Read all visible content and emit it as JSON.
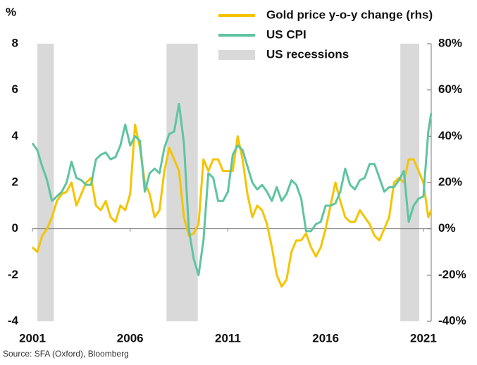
{
  "chart_data": {
    "type": "line",
    "y_label": "%",
    "source": "Source: SFA (Oxford), Bloomberg",
    "xlim": [
      2001,
      2021.4
    ],
    "xticks": [
      2001,
      2006,
      2011,
      2016,
      2021
    ],
    "ylim": [
      -4,
      8
    ],
    "yticks": [
      -4,
      -2,
      0,
      2,
      4,
      6,
      8
    ],
    "y2lim": [
      -40,
      80
    ],
    "y2ticks": [
      {
        "value": -40,
        "label": "-40%"
      },
      {
        "value": -20,
        "label": "-20%"
      },
      {
        "value": 0,
        "label": "0%"
      },
      {
        "value": 20,
        "label": "20%"
      },
      {
        "value": 40,
        "label": "40%"
      },
      {
        "value": 60,
        "label": "60%"
      },
      {
        "value": 80,
        "label": "80%"
      }
    ],
    "x": [
      2001,
      2001.25,
      2001.5,
      2001.75,
      2002,
      2002.25,
      2002.5,
      2002.75,
      2003,
      2003.25,
      2003.5,
      2003.75,
      2004,
      2004.25,
      2004.5,
      2004.75,
      2005,
      2005.25,
      2005.5,
      2005.75,
      2006,
      2006.25,
      2006.5,
      2006.75,
      2007,
      2007.25,
      2007.5,
      2007.75,
      2008,
      2008.25,
      2008.5,
      2008.75,
      2009,
      2009.25,
      2009.5,
      2009.75,
      2010,
      2010.25,
      2010.5,
      2010.75,
      2011,
      2011.25,
      2011.5,
      2011.75,
      2012,
      2012.25,
      2012.5,
      2012.75,
      2013,
      2013.25,
      2013.5,
      2013.75,
      2014,
      2014.25,
      2014.5,
      2014.75,
      2015,
      2015.25,
      2015.5,
      2015.75,
      2016,
      2016.25,
      2016.5,
      2016.75,
      2017,
      2017.25,
      2017.5,
      2017.75,
      2018,
      2018.25,
      2018.5,
      2018.75,
      2019,
      2019.25,
      2019.5,
      2019.75,
      2020,
      2020.25,
      2020.5,
      2020.75,
      2021,
      2021.25,
      2021.4
    ],
    "series": [
      {
        "name": "Gold price y-o-y change (rhs)",
        "color": "#f5c400",
        "axis": "y2",
        "values": [
          -8,
          -10,
          -3,
          0,
          5,
          12,
          15,
          16,
          20,
          10,
          15,
          20,
          22,
          10,
          8,
          12,
          5,
          3,
          10,
          8,
          15,
          45,
          35,
          20,
          15,
          5,
          8,
          25,
          35,
          30,
          25,
          5,
          -3,
          -2,
          2,
          30,
          25,
          30,
          30,
          25,
          25,
          25,
          40,
          30,
          15,
          5,
          10,
          8,
          2,
          -8,
          -20,
          -25,
          -22,
          -10,
          -5,
          -5,
          -2,
          -8,
          -12,
          -8,
          0,
          10,
          20,
          12,
          5,
          3,
          3,
          8,
          5,
          2,
          -3,
          -5,
          0,
          5,
          20,
          22,
          20,
          30,
          30,
          25,
          20,
          5,
          8
        ]
      },
      {
        "name": "US CPI",
        "color": "#5fc4a0",
        "values": [
          3.7,
          3.4,
          2.7,
          2.1,
          1.2,
          1.4,
          1.6,
          2.0,
          2.9,
          2.2,
          2.1,
          1.9,
          1.9,
          3.0,
          3.2,
          3.3,
          3.0,
          3.1,
          3.6,
          4.5,
          3.6,
          4.0,
          3.8,
          1.6,
          2.4,
          2.6,
          2.4,
          3.5,
          4.1,
          4.2,
          5.4,
          3.7,
          0.0,
          -1.3,
          -2.0,
          -0.5,
          2.4,
          2.2,
          1.2,
          1.2,
          1.6,
          3.2,
          3.6,
          3.4,
          2.7,
          2.0,
          1.7,
          1.9,
          1.6,
          1.2,
          1.8,
          1.2,
          1.5,
          2.1,
          1.9,
          1.3,
          -0.1,
          -0.1,
          0.2,
          0.3,
          1.0,
          1.0,
          1.1,
          1.6,
          2.6,
          1.9,
          1.7,
          2.1,
          2.2,
          2.8,
          2.8,
          2.2,
          1.6,
          1.8,
          1.8,
          2.1,
          2.5,
          0.3,
          1.0,
          1.3,
          1.4,
          4.2,
          5.0
        ]
      }
    ],
    "recessions": {
      "name": "US recessions",
      "color": "#d9d9d9",
      "spans": [
        [
          2001.25,
          2002.1
        ],
        [
          2007.86,
          2009.46
        ],
        [
          2019.82,
          2020.79
        ]
      ]
    }
  }
}
